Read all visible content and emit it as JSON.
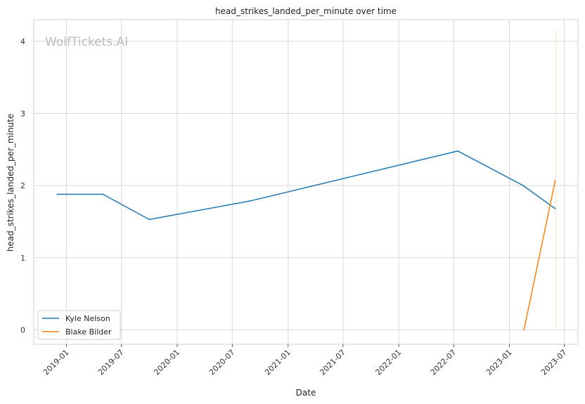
{
  "chart_data": {
    "type": "line",
    "title": "head_strikes_landed_per_minute over time",
    "xlabel": "Date",
    "ylabel": "head_strikes_landed_per_minute",
    "watermark": "WolfTickets.AI",
    "x_ticks": [
      "2019-01",
      "2019-07",
      "2020-01",
      "2020-07",
      "2021-01",
      "2021-07",
      "2022-01",
      "2022-07",
      "2023-01",
      "2023-07"
    ],
    "y_ticks": [
      0,
      1,
      2,
      3,
      4
    ],
    "xlim": [
      "2018-09-15",
      "2023-08-15"
    ],
    "ylim": [
      -0.2,
      4.3
    ],
    "grid": true,
    "legend_position": "lower-left",
    "series": [
      {
        "name": "Kyle Nelson",
        "color": "#1f77b4",
        "points": [
          {
            "x": "2018-12-01",
            "y": 1.88
          },
          {
            "x": "2019-05-01",
            "y": 1.88
          },
          {
            "x": "2019-10-01",
            "y": 1.53
          },
          {
            "x": "2020-09-01",
            "y": 1.79
          },
          {
            "x": "2022-07-15",
            "y": 2.48
          },
          {
            "x": "2023-02-15",
            "y": 2.0
          },
          {
            "x": "2023-06-01",
            "y": 1.68
          }
        ]
      },
      {
        "name": "Blake Bilder",
        "color": "#ff7f0e",
        "points": [
          {
            "x": "2023-02-18",
            "y": 0.0
          },
          {
            "x": "2023-06-01",
            "y": 2.07
          }
        ]
      }
    ],
    "annotations": [
      {
        "type": "vertical-line",
        "x": "2023-06-03",
        "y_range": [
          0.0,
          4.15
        ],
        "color": "#ffe4c4"
      }
    ]
  }
}
